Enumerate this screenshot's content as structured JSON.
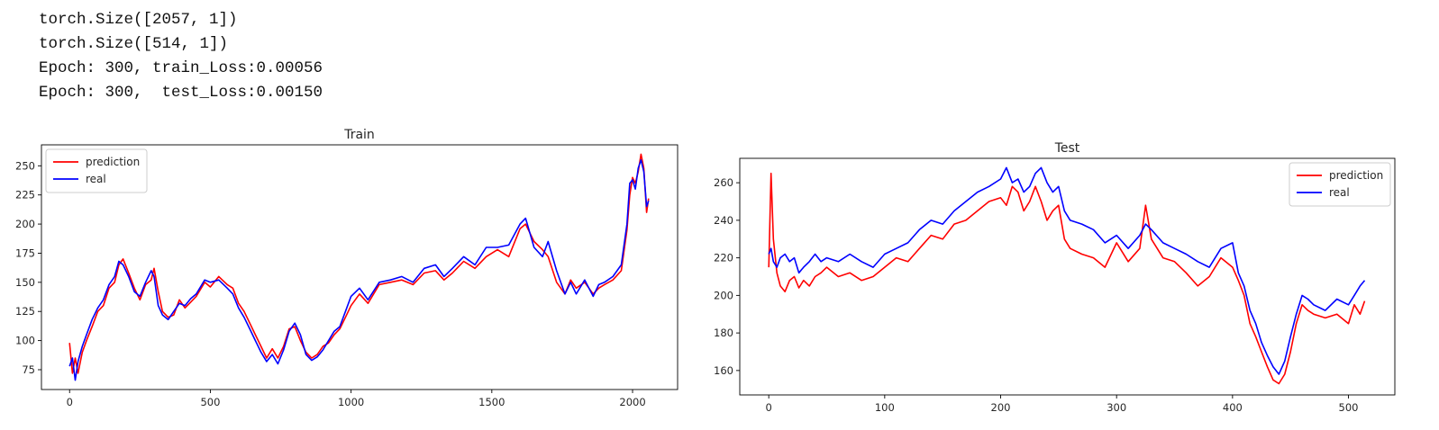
{
  "console": {
    "lines": [
      "torch.Size([2057, 1])",
      "torch.Size([514, 1])",
      "Epoch: 300, train_Loss:0.00056",
      "Epoch: 300,  test_Loss:0.00150"
    ]
  },
  "colors": {
    "prediction": "#ff0000",
    "real": "#0000ff",
    "axes": "#000000",
    "legend_border": "#cccccc"
  },
  "chart_data": [
    {
      "type": "line",
      "title": "Train",
      "xlabel": "",
      "ylabel": "",
      "xlim": [
        -100,
        2160
      ],
      "ylim": [
        58,
        268
      ],
      "xticks": [
        0,
        500,
        1000,
        1500,
        2000
      ],
      "yticks": [
        75,
        100,
        125,
        150,
        175,
        200,
        225,
        250
      ],
      "grid": false,
      "legend": "upper left",
      "series": [
        {
          "name": "prediction",
          "color": "#ff0000",
          "x": [
            0,
            10,
            20,
            30,
            45,
            60,
            80,
            100,
            120,
            140,
            160,
            175,
            190,
            210,
            230,
            250,
            270,
            290,
            300,
            315,
            330,
            350,
            370,
            390,
            410,
            430,
            450,
            480,
            500,
            530,
            560,
            580,
            600,
            620,
            640,
            660,
            680,
            700,
            720,
            740,
            760,
            780,
            800,
            820,
            840,
            860,
            880,
            900,
            920,
            940,
            960,
            980,
            1000,
            1030,
            1060,
            1100,
            1140,
            1180,
            1220,
            1260,
            1300,
            1330,
            1360,
            1400,
            1440,
            1480,
            1520,
            1560,
            1600,
            1620,
            1650,
            1680,
            1700,
            1730,
            1760,
            1780,
            1800,
            1830,
            1860,
            1880,
            1900,
            1930,
            1960,
            1980,
            1990,
            2000,
            2010,
            2020,
            2030,
            2040,
            2050,
            2057
          ],
          "values": [
            98,
            72,
            85,
            72,
            90,
            100,
            112,
            125,
            130,
            145,
            150,
            165,
            170,
            158,
            145,
            135,
            148,
            152,
            162,
            142,
            125,
            120,
            122,
            135,
            128,
            133,
            138,
            150,
            146,
            155,
            148,
            145,
            132,
            125,
            115,
            105,
            95,
            85,
            93,
            85,
            95,
            110,
            112,
            100,
            90,
            85,
            88,
            95,
            98,
            105,
            110,
            120,
            130,
            140,
            132,
            148,
            150,
            152,
            148,
            158,
            160,
            152,
            158,
            168,
            162,
            172,
            178,
            172,
            196,
            200,
            185,
            178,
            172,
            150,
            140,
            152,
            145,
            150,
            140,
            145,
            148,
            152,
            160,
            195,
            225,
            240,
            235,
            245,
            260,
            248,
            210,
            222
          ]
        },
        {
          "name": "real",
          "color": "#0000ff",
          "x": [
            0,
            10,
            20,
            30,
            45,
            60,
            80,
            100,
            120,
            140,
            160,
            175,
            190,
            210,
            230,
            250,
            270,
            290,
            300,
            315,
            330,
            350,
            370,
            390,
            410,
            430,
            450,
            480,
            500,
            530,
            560,
            580,
            600,
            620,
            640,
            660,
            680,
            700,
            720,
            740,
            760,
            780,
            800,
            820,
            840,
            860,
            880,
            900,
            920,
            940,
            960,
            980,
            1000,
            1030,
            1060,
            1100,
            1140,
            1180,
            1220,
            1260,
            1300,
            1330,
            1360,
            1400,
            1440,
            1480,
            1520,
            1560,
            1600,
            1620,
            1650,
            1680,
            1700,
            1730,
            1760,
            1780,
            1800,
            1830,
            1860,
            1880,
            1900,
            1930,
            1960,
            1980,
            1990,
            2000,
            2010,
            2020,
            2030,
            2040,
            2050,
            2057
          ],
          "values": [
            78,
            85,
            66,
            82,
            95,
            105,
            118,
            128,
            135,
            148,
            155,
            168,
            165,
            155,
            142,
            138,
            150,
            160,
            155,
            130,
            122,
            118,
            125,
            132,
            130,
            136,
            140,
            152,
            150,
            152,
            145,
            140,
            128,
            120,
            110,
            100,
            90,
            82,
            88,
            80,
            92,
            108,
            115,
            105,
            88,
            83,
            86,
            92,
            100,
            108,
            112,
            125,
            138,
            145,
            135,
            150,
            152,
            155,
            150,
            162,
            165,
            155,
            162,
            172,
            165,
            180,
            180,
            182,
            200,
            205,
            180,
            172,
            185,
            160,
            140,
            150,
            140,
            152,
            138,
            148,
            150,
            155,
            165,
            200,
            235,
            238,
            230,
            248,
            255,
            245,
            215,
            220
          ]
        }
      ]
    },
    {
      "type": "line",
      "title": "Test",
      "xlabel": "",
      "ylabel": "",
      "xlim": [
        -25,
        540
      ],
      "ylim": [
        147,
        273
      ],
      "xticks": [
        0,
        100,
        200,
        300,
        400,
        500
      ],
      "yticks": [
        160,
        180,
        200,
        220,
        240,
        260
      ],
      "grid": false,
      "legend": "upper right",
      "series": [
        {
          "name": "prediction",
          "color": "#ff0000",
          "x": [
            0,
            2,
            4,
            7,
            10,
            14,
            18,
            22,
            26,
            30,
            35,
            40,
            45,
            50,
            60,
            70,
            80,
            90,
            100,
            110,
            120,
            130,
            140,
            150,
            160,
            170,
            180,
            190,
            200,
            205,
            210,
            215,
            220,
            225,
            230,
            235,
            240,
            245,
            250,
            255,
            260,
            270,
            280,
            290,
            300,
            310,
            320,
            325,
            330,
            340,
            350,
            360,
            370,
            380,
            390,
            400,
            405,
            410,
            415,
            420,
            425,
            430,
            435,
            440,
            445,
            450,
            455,
            460,
            465,
            470,
            480,
            490,
            500,
            505,
            510,
            514
          ],
          "values": [
            215,
            265,
            230,
            212,
            205,
            202,
            208,
            210,
            204,
            208,
            205,
            210,
            212,
            215,
            210,
            212,
            208,
            210,
            215,
            220,
            218,
            225,
            232,
            230,
            238,
            240,
            245,
            250,
            252,
            248,
            258,
            255,
            245,
            250,
            258,
            250,
            240,
            245,
            248,
            230,
            225,
            222,
            220,
            215,
            228,
            218,
            225,
            248,
            230,
            220,
            218,
            212,
            205,
            210,
            220,
            215,
            208,
            200,
            185,
            178,
            170,
            162,
            155,
            153,
            158,
            170,
            185,
            195,
            192,
            190,
            188,
            190,
            185,
            195,
            190,
            197
          ]
        },
        {
          "name": "real",
          "color": "#0000ff",
          "x": [
            0,
            2,
            4,
            7,
            10,
            14,
            18,
            22,
            26,
            30,
            35,
            40,
            45,
            50,
            60,
            70,
            80,
            90,
            100,
            110,
            120,
            130,
            140,
            150,
            160,
            170,
            180,
            190,
            200,
            205,
            210,
            215,
            220,
            225,
            230,
            235,
            240,
            245,
            250,
            255,
            260,
            270,
            280,
            290,
            300,
            310,
            320,
            325,
            330,
            340,
            350,
            360,
            370,
            380,
            390,
            400,
            405,
            410,
            415,
            420,
            425,
            430,
            435,
            440,
            445,
            450,
            455,
            460,
            465,
            470,
            480,
            490,
            500,
            505,
            510,
            514
          ],
          "values": [
            222,
            225,
            218,
            215,
            220,
            222,
            218,
            220,
            212,
            215,
            218,
            222,
            218,
            220,
            218,
            222,
            218,
            215,
            222,
            225,
            228,
            235,
            240,
            238,
            245,
            250,
            255,
            258,
            262,
            268,
            260,
            262,
            255,
            258,
            265,
            268,
            260,
            255,
            258,
            245,
            240,
            238,
            235,
            228,
            232,
            225,
            232,
            238,
            235,
            228,
            225,
            222,
            218,
            215,
            225,
            228,
            212,
            205,
            192,
            185,
            175,
            168,
            162,
            158,
            165,
            178,
            190,
            200,
            198,
            195,
            192,
            198,
            195,
            200,
            205,
            208
          ]
        }
      ]
    }
  ]
}
